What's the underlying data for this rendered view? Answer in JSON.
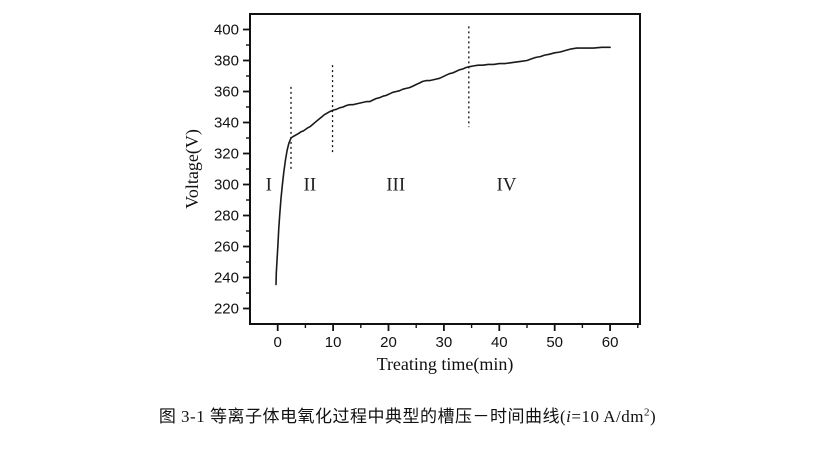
{
  "figure_caption": {
    "prefix": "图 3-1 等离子体电氧化过程中典型的槽压－时间曲线(",
    "symbol": "i",
    "value": "=10 A/dm",
    "superscript": "2",
    "suffix": ")"
  },
  "chart_data": {
    "type": "line",
    "title": "",
    "xlabel": "Treating time(min)",
    "ylabel": "Voltage(V)",
    "xlim": [
      -5,
      65.4
    ],
    "ylim": [
      210,
      410
    ],
    "x_major_ticks": [
      0,
      10,
      20,
      30,
      40,
      50,
      60
    ],
    "x_minor_interval": 5,
    "y_major_ticks": [
      220,
      240,
      260,
      280,
      300,
      320,
      340,
      360,
      380,
      400
    ],
    "y_minor_interval": 10,
    "grid": false,
    "legend": "none",
    "axis_color": "#111111",
    "line_color": "#1a1a1a",
    "series": [
      {
        "name": "cell-voltage-vs-time",
        "points": [
          [
            -0.3,
            235.5
          ],
          [
            -0.25,
            243
          ],
          [
            -0.1,
            252
          ],
          [
            0.05,
            262
          ],
          [
            0.2,
            272
          ],
          [
            0.4,
            282
          ],
          [
            0.6,
            291
          ],
          [
            0.85,
            300
          ],
          [
            1.1,
            308
          ],
          [
            1.4,
            316
          ],
          [
            1.7,
            322
          ],
          [
            2.0,
            326.5
          ],
          [
            2.4,
            330
          ],
          [
            2.8,
            331
          ],
          [
            3.3,
            332
          ],
          [
            3.8,
            333
          ],
          [
            4.2,
            334
          ],
          [
            4.6,
            334.5
          ],
          [
            5.0,
            335.5
          ],
          [
            5.4,
            336.5
          ],
          [
            5.9,
            337.5
          ],
          [
            6.4,
            339
          ],
          [
            6.9,
            340.5
          ],
          [
            7.4,
            342
          ],
          [
            7.9,
            343.5
          ],
          [
            8.4,
            345
          ],
          [
            8.9,
            346
          ],
          [
            9.4,
            347
          ],
          [
            10,
            348
          ],
          [
            10.6,
            348.5
          ],
          [
            11.2,
            349.5
          ],
          [
            11.8,
            350
          ],
          [
            12.4,
            351
          ],
          [
            13,
            351.5
          ],
          [
            13.6,
            351.5
          ],
          [
            14.2,
            352
          ],
          [
            14.8,
            352.5
          ],
          [
            15.4,
            353
          ],
          [
            16,
            353.5
          ],
          [
            16.6,
            353.5
          ],
          [
            17.2,
            354.5
          ],
          [
            17.8,
            355.5
          ],
          [
            18.4,
            356
          ],
          [
            19,
            357
          ],
          [
            19.6,
            357.5
          ],
          [
            20.2,
            358.5
          ],
          [
            20.8,
            359.5
          ],
          [
            21.4,
            360
          ],
          [
            22,
            360.5
          ],
          [
            22.6,
            361.5
          ],
          [
            23.2,
            362
          ],
          [
            23.8,
            362.5
          ],
          [
            24.4,
            363.5
          ],
          [
            25,
            364.5
          ],
          [
            25.6,
            365.5
          ],
          [
            26.2,
            366.5
          ],
          [
            26.8,
            367
          ],
          [
            27.4,
            367
          ],
          [
            28,
            367.5
          ],
          [
            28.6,
            368
          ],
          [
            29.2,
            368.5
          ],
          [
            29.8,
            369.5
          ],
          [
            30.4,
            370.5
          ],
          [
            31,
            371.5
          ],
          [
            31.6,
            372
          ],
          [
            32.2,
            373
          ],
          [
            32.8,
            374
          ],
          [
            33.4,
            374.5
          ],
          [
            34,
            375.5
          ],
          [
            34.6,
            376
          ],
          [
            35.4,
            376.5
          ],
          [
            36.2,
            377
          ],
          [
            37,
            377
          ],
          [
            38,
            377.5
          ],
          [
            39,
            377.5
          ],
          [
            40,
            378
          ],
          [
            41,
            378
          ],
          [
            42,
            378.5
          ],
          [
            43,
            379
          ],
          [
            44,
            379.5
          ],
          [
            45,
            380
          ],
          [
            45.8,
            381
          ],
          [
            46.6,
            382
          ],
          [
            47.4,
            382.5
          ],
          [
            48.2,
            383.5
          ],
          [
            49,
            384
          ],
          [
            50,
            385
          ],
          [
            51,
            385.5
          ],
          [
            52,
            386.5
          ],
          [
            53,
            387.5
          ],
          [
            54,
            388
          ],
          [
            55.5,
            388
          ],
          [
            57,
            388
          ],
          [
            58.5,
            388.5
          ],
          [
            60,
            388.5
          ]
        ]
      }
    ],
    "stage_dividers": [
      {
        "x": 2.4,
        "y_from": 309,
        "y_to": 363
      },
      {
        "x": 9.9,
        "y_from": 320,
        "y_to": 377
      },
      {
        "x": 34.5,
        "y_from": 337,
        "y_to": 402
      }
    ],
    "stage_labels": [
      {
        "text": "I",
        "x": -1.6,
        "y": 300
      },
      {
        "text": "II",
        "x": 5.8,
        "y": 300
      },
      {
        "text": "III",
        "x": 21.3,
        "y": 300
      },
      {
        "text": "IV",
        "x": 41.3,
        "y": 300
      }
    ]
  }
}
